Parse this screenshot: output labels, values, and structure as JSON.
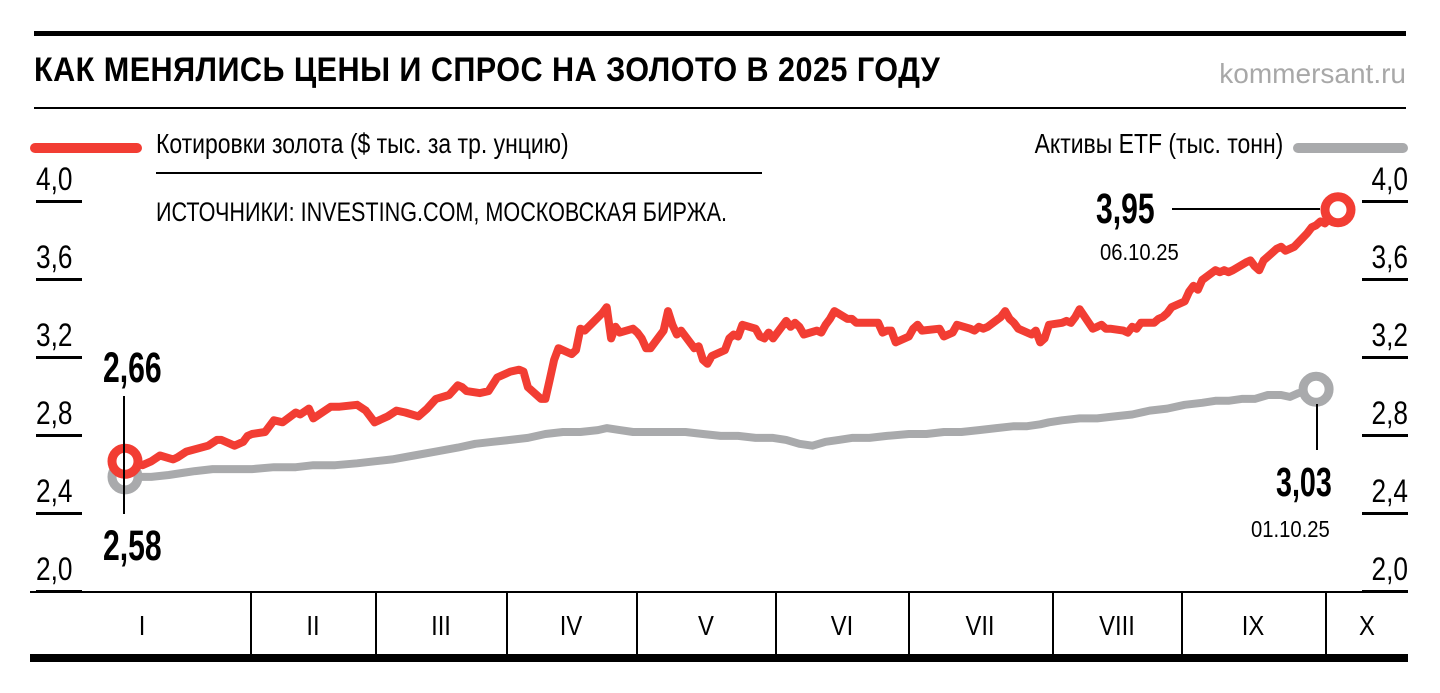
{
  "header": {
    "title": "КАК МЕНЯЛИСЬ ЦЕНЫ И СПРОС НА ЗОЛОТО В 2025 ГОДУ",
    "site": "kommersant.ru"
  },
  "legend": {
    "gold": "Котировки золота ($ тыс. за тр. унцию)",
    "etf": "Активы ETF (тыс. тонн)"
  },
  "sources": "ИСТОЧНИКИ: INVESTING.COM, МОСКОВСКАЯ БИРЖА.",
  "annotations": {
    "gold_start": {
      "value": "2,66"
    },
    "etf_start": {
      "value": "2,58"
    },
    "gold_end": {
      "value": "3,95",
      "date": "06.10.25"
    },
    "etf_end": {
      "value": "3,03",
      "date": "01.10.25"
    }
  },
  "colors": {
    "gold": "#f23d33",
    "etf": "#a9aaac",
    "site_gray": "#a8a8a8",
    "black": "#000000"
  },
  "chart_data": {
    "type": "line",
    "title": "КАК МЕНЯЛИСЬ ЦЕНЫ И СПРОС НА ЗОЛОТО В 2025 ГОДУ",
    "ylim": [
      2.0,
      4.0
    ],
    "grid": false,
    "legend_position": "top",
    "y_ticks": {
      "labels": [
        "4,0",
        "3,6",
        "3,2",
        "2,8",
        "2,4",
        "2,0"
      ],
      "values": [
        4.0,
        3.6,
        3.2,
        2.8,
        2.4,
        2.0
      ]
    },
    "x_months": [
      "I",
      "II",
      "III",
      "IV",
      "V",
      "VI",
      "VII",
      "VIII",
      "IX",
      "X"
    ],
    "series": [
      {
        "key": "etf",
        "name": "Активы ETF (тыс. тонн)",
        "color": "etf",
        "start_value": 2.58,
        "end_value": 3.03,
        "end_date": "01.10.25",
        "points": [
          [
            2,
            2.58
          ],
          [
            8,
            2.58
          ],
          [
            12,
            2.59
          ],
          [
            15,
            2.6
          ],
          [
            18,
            2.61
          ],
          [
            22,
            2.62
          ],
          [
            26,
            2.62
          ],
          [
            31,
            2.62
          ],
          [
            36,
            2.63
          ],
          [
            41,
            2.63
          ],
          [
            45,
            2.64
          ],
          [
            50,
            2.64
          ],
          [
            55,
            2.65
          ],
          [
            59,
            2.66
          ],
          [
            63,
            2.67
          ],
          [
            68,
            2.69
          ],
          [
            73,
            2.71
          ],
          [
            78,
            2.73
          ],
          [
            82,
            2.75
          ],
          [
            86,
            2.76
          ],
          [
            90,
            2.77
          ],
          [
            94,
            2.78
          ],
          [
            98,
            2.8
          ],
          [
            102,
            2.81
          ],
          [
            106,
            2.81
          ],
          [
            110,
            2.82
          ],
          [
            112,
            2.83
          ],
          [
            115,
            2.82
          ],
          [
            118,
            2.81
          ],
          [
            122,
            2.81
          ],
          [
            126,
            2.81
          ],
          [
            130,
            2.81
          ],
          [
            134,
            2.8
          ],
          [
            138,
            2.79
          ],
          [
            142,
            2.79
          ],
          [
            146,
            2.78
          ],
          [
            150,
            2.78
          ],
          [
            153,
            2.77
          ],
          [
            156,
            2.75
          ],
          [
            159,
            2.74
          ],
          [
            162,
            2.76
          ],
          [
            165,
            2.77
          ],
          [
            168,
            2.78
          ],
          [
            172,
            2.78
          ],
          [
            176,
            2.79
          ],
          [
            181,
            2.8
          ],
          [
            185,
            2.8
          ],
          [
            189,
            2.81
          ],
          [
            193,
            2.81
          ],
          [
            197,
            2.82
          ],
          [
            201,
            2.83
          ],
          [
            205,
            2.84
          ],
          [
            208,
            2.84
          ],
          [
            211,
            2.85
          ],
          [
            213,
            2.86
          ],
          [
            216,
            2.87
          ],
          [
            220,
            2.88
          ],
          [
            224,
            2.88
          ],
          [
            228,
            2.89
          ],
          [
            232,
            2.9
          ],
          [
            236,
            2.92
          ],
          [
            240,
            2.93
          ],
          [
            244,
            2.95
          ],
          [
            248,
            2.96
          ],
          [
            251,
            2.97
          ],
          [
            254,
            2.97
          ],
          [
            257,
            2.98
          ],
          [
            260,
            2.98
          ],
          [
            263,
            3.0
          ],
          [
            266,
            3.0
          ],
          [
            268,
            2.99
          ],
          [
            270,
            3.01
          ],
          [
            272,
            3.02
          ],
          [
            274,
            3.03
          ]
        ]
      },
      {
        "key": "gold",
        "name": "Котировки золота ($ тыс. за тр. унцию)",
        "color": "gold",
        "start_value": 2.66,
        "end_value": 3.95,
        "end_date": "06.10.25",
        "points": [
          [
            2,
            2.66
          ],
          [
            3,
            2.67
          ],
          [
            6,
            2.64
          ],
          [
            8,
            2.66
          ],
          [
            10,
            2.69
          ],
          [
            13,
            2.67
          ],
          [
            14,
            2.68
          ],
          [
            16,
            2.71
          ],
          [
            21,
            2.74
          ],
          [
            23,
            2.77
          ],
          [
            24,
            2.77
          ],
          [
            27,
            2.74
          ],
          [
            29,
            2.76
          ],
          [
            30,
            2.79
          ],
          [
            31,
            2.8
          ],
          [
            34,
            2.81
          ],
          [
            36,
            2.87
          ],
          [
            38,
            2.86
          ],
          [
            41,
            2.91
          ],
          [
            42,
            2.9
          ],
          [
            44,
            2.93
          ],
          [
            45,
            2.88
          ],
          [
            49,
            2.94
          ],
          [
            51,
            2.94
          ],
          [
            55,
            2.95
          ],
          [
            57,
            2.92
          ],
          [
            59,
            2.86
          ],
          [
            62,
            2.89
          ],
          [
            64,
            2.92
          ],
          [
            66,
            2.91
          ],
          [
            69,
            2.89
          ],
          [
            71,
            2.93
          ],
          [
            73,
            2.98
          ],
          [
            76,
            3.0
          ],
          [
            78,
            3.05
          ],
          [
            79,
            3.04
          ],
          [
            80,
            3.02
          ],
          [
            83,
            3.01
          ],
          [
            85,
            3.02
          ],
          [
            87,
            3.09
          ],
          [
            90,
            3.12
          ],
          [
            92,
            3.13
          ],
          [
            93,
            3.12
          ],
          [
            94,
            3.04
          ],
          [
            97,
            2.98
          ],
          [
            98,
            2.98
          ],
          [
            99,
            3.08
          ],
          [
            100,
            3.18
          ],
          [
            101,
            3.24
          ],
          [
            104,
            3.21
          ],
          [
            105,
            3.23
          ],
          [
            106,
            3.34
          ],
          [
            107,
            3.33
          ],
          [
            111,
            3.42
          ],
          [
            112,
            3.45
          ],
          [
            113,
            3.29
          ],
          [
            114,
            3.35
          ],
          [
            115,
            3.32
          ],
          [
            118,
            3.34
          ],
          [
            119,
            3.32
          ],
          [
            120,
            3.29
          ],
          [
            121,
            3.24
          ],
          [
            122,
            3.24
          ],
          [
            125,
            3.33
          ],
          [
            126,
            3.43
          ],
          [
            127,
            3.36
          ],
          [
            128,
            3.31
          ],
          [
            129,
            3.33
          ],
          [
            132,
            3.24
          ],
          [
            133,
            3.25
          ],
          [
            134,
            3.18
          ],
          [
            135,
            3.16
          ],
          [
            136,
            3.2
          ],
          [
            139,
            3.23
          ],
          [
            140,
            3.29
          ],
          [
            141,
            3.31
          ],
          [
            142,
            3.3
          ],
          [
            143,
            3.36
          ],
          [
            146,
            3.34
          ],
          [
            147,
            3.3
          ],
          [
            148,
            3.29
          ],
          [
            149,
            3.32
          ],
          [
            150,
            3.29
          ],
          [
            153,
            3.38
          ],
          [
            154,
            3.35
          ],
          [
            155,
            3.37
          ],
          [
            156,
            3.35
          ],
          [
            157,
            3.31
          ],
          [
            160,
            3.33
          ],
          [
            161,
            3.32
          ],
          [
            162,
            3.36
          ],
          [
            163,
            3.39
          ],
          [
            164,
            3.43
          ],
          [
            167,
            3.39
          ],
          [
            168,
            3.39
          ],
          [
            169,
            3.37
          ],
          [
            170,
            3.37
          ],
          [
            171,
            3.37
          ],
          [
            174,
            3.37
          ],
          [
            175,
            3.32
          ],
          [
            176,
            3.33
          ],
          [
            177,
            3.33
          ],
          [
            178,
            3.27
          ],
          [
            181,
            3.3
          ],
          [
            182,
            3.34
          ],
          [
            183,
            3.36
          ],
          [
            184,
            3.33
          ],
          [
            188,
            3.34
          ],
          [
            189,
            3.3
          ],
          [
            190,
            3.31
          ],
          [
            191,
            3.32
          ],
          [
            192,
            3.36
          ],
          [
            195,
            3.34
          ],
          [
            196,
            3.33
          ],
          [
            197,
            3.35
          ],
          [
            198,
            3.34
          ],
          [
            199,
            3.35
          ],
          [
            202,
            3.4
          ],
          [
            203,
            3.43
          ],
          [
            204,
            3.39
          ],
          [
            205,
            3.37
          ],
          [
            206,
            3.34
          ],
          [
            209,
            3.31
          ],
          [
            210,
            3.33
          ],
          [
            211,
            3.27
          ],
          [
            212,
            3.29
          ],
          [
            213,
            3.36
          ],
          [
            216,
            3.37
          ],
          [
            217,
            3.38
          ],
          [
            218,
            3.37
          ],
          [
            219,
            3.4
          ],
          [
            220,
            3.44
          ],
          [
            223,
            3.34
          ],
          [
            224,
            3.35
          ],
          [
            225,
            3.36
          ],
          [
            226,
            3.34
          ],
          [
            227,
            3.34
          ],
          [
            230,
            3.33
          ],
          [
            231,
            3.32
          ],
          [
            232,
            3.35
          ],
          [
            233,
            3.34
          ],
          [
            234,
            3.37
          ],
          [
            237,
            3.37
          ],
          [
            238,
            3.39
          ],
          [
            239,
            3.4
          ],
          [
            240,
            3.42
          ],
          [
            241,
            3.45
          ],
          [
            244,
            3.48
          ],
          [
            245,
            3.53
          ],
          [
            246,
            3.56
          ],
          [
            247,
            3.54
          ],
          [
            248,
            3.59
          ],
          [
            251,
            3.64
          ],
          [
            252,
            3.63
          ],
          [
            253,
            3.64
          ],
          [
            254,
            3.63
          ],
          [
            255,
            3.64
          ],
          [
            258,
            3.68
          ],
          [
            259,
            3.69
          ],
          [
            260,
            3.66
          ],
          [
            261,
            3.64
          ],
          [
            262,
            3.69
          ],
          [
            265,
            3.75
          ],
          [
            266,
            3.76
          ],
          [
            267,
            3.74
          ],
          [
            268,
            3.75
          ],
          [
            269,
            3.76
          ],
          [
            272,
            3.83
          ],
          [
            273,
            3.86
          ],
          [
            274,
            3.87
          ],
          [
            275,
            3.89
          ],
          [
            276,
            3.88
          ],
          [
            279,
            3.95
          ]
        ]
      }
    ]
  }
}
